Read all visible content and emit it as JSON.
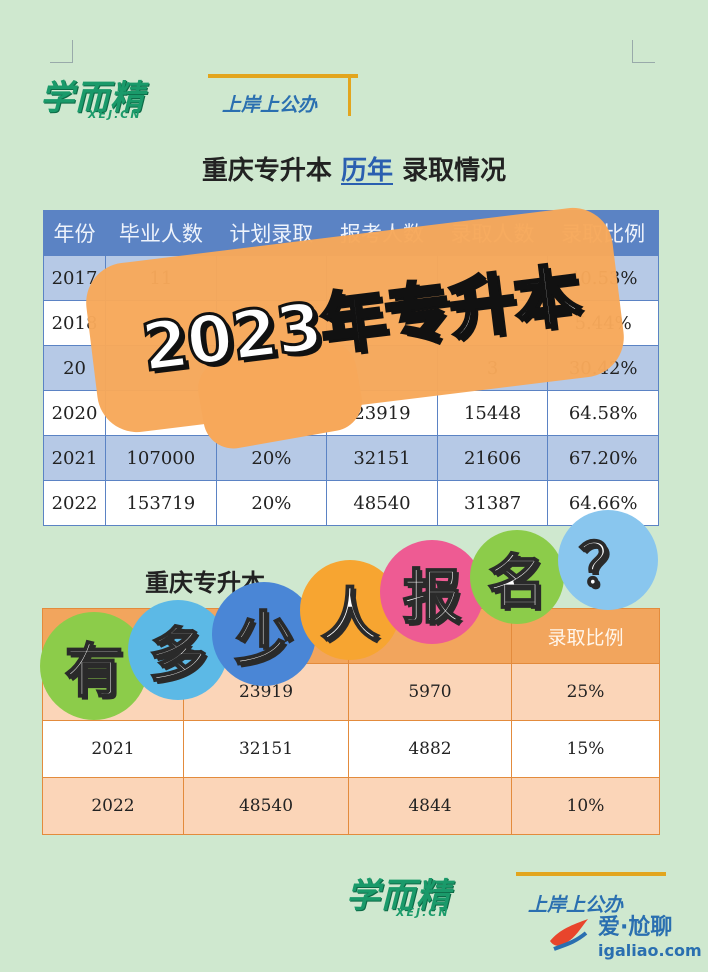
{
  "header": {
    "brand_cn": "学而精",
    "brand_en": "XEJ.CN",
    "slogan": "上岸上公办"
  },
  "table1": {
    "title_prefix": "重庆专升本",
    "title_highlight": "历年",
    "title_suffix": "录取情况",
    "columns": [
      "年份",
      "毕业人数",
      "计划录取",
      "报考人数",
      "录取人数",
      "录取比例"
    ],
    "rows": [
      [
        "2017",
        "11",
        "",
        "",
        "",
        "40.53%"
      ],
      [
        "2018",
        "",
        "",
        "",
        "",
        "5.44%"
      ],
      [
        "20",
        "",
        "",
        "",
        "3",
        "30.42%"
      ],
      [
        "2020",
        "",
        "",
        "23919",
        "15448",
        "64.58%"
      ],
      [
        "2021",
        "107000",
        "20%",
        "32151",
        "21606",
        "67.20%"
      ],
      [
        "2022",
        "153719",
        "20%",
        "48540",
        "31387",
        "64.66%"
      ]
    ]
  },
  "table2": {
    "title_prefix": "重庆专升本",
    "columns": [
      "",
      "",
      "",
      "录取比例"
    ],
    "rows": [
      [
        "",
        "23919",
        "5970",
        "25%"
      ],
      [
        "2021",
        "32151",
        "4882",
        "15%"
      ],
      [
        "2022",
        "48540",
        "4844",
        "10%"
      ]
    ]
  },
  "overlay": {
    "headline": "2023年专升本",
    "bubbles": [
      {
        "char": "有",
        "color": "#8ccc4a"
      },
      {
        "char": "多",
        "color": "#5cb9e6"
      },
      {
        "char": "少",
        "color": "#4a86d6"
      },
      {
        "char": "人",
        "color": "#f7a531"
      },
      {
        "char": "报",
        "color": "#ee5b93"
      },
      {
        "char": "名",
        "color": "#8ccc4a"
      },
      {
        "char": "？",
        "color": "#89c6ee"
      }
    ]
  },
  "footer": {
    "brand_cn": "学而精",
    "brand_en": "XEJ.CN",
    "slogan": "上岸上公办"
  },
  "watermark": {
    "line1": "爱·尬聊",
    "line2": "igaliao.com"
  }
}
